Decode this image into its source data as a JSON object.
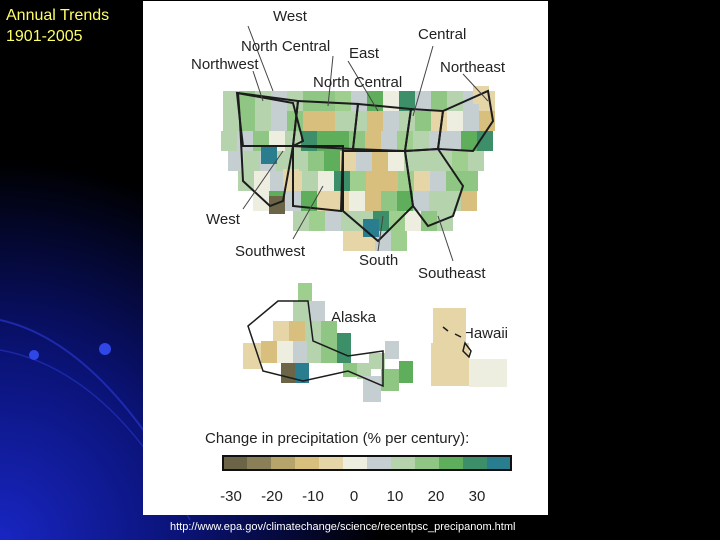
{
  "slide": {
    "title_line1": "Annual Trends",
    "title_line2": "1901-2005",
    "source_url": "http://www.epa.gov/climatechange/science/recentpsc_precipanom.html"
  },
  "map": {
    "region_labels": {
      "west_top": "West",
      "north_central_east": "North Central",
      "east": "East",
      "central": "Central",
      "northwest": "Northwest",
      "northeast": "Northeast",
      "north_central": "North Central",
      "west": "West",
      "southwest": "Southwest",
      "south": "South",
      "southeast": "Southeast",
      "alaska": "Alaska",
      "hawaii": "Hawaii"
    },
    "legend": {
      "title": "Change in precipitation (% per century):",
      "ticks": [
        "-30",
        "-20",
        "-10",
        "0",
        "10",
        "20",
        "30"
      ],
      "colors": [
        "#6b6447",
        "#8a8058",
        "#b7a46a",
        "#d8bf7e",
        "#e6d5a6",
        "#eeeee0",
        "#c5cfd1",
        "#b5d4ae",
        "#8fc683",
        "#5fae5c",
        "#3d8f6a",
        "#2a7c8f"
      ]
    }
  }
}
